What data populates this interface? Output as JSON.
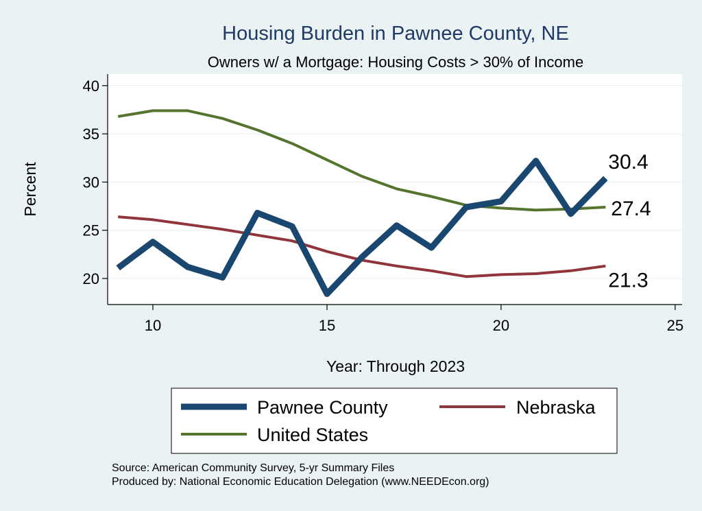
{
  "chart_data": {
    "type": "line",
    "title": "Housing Burden in Pawnee County, NE",
    "subtitle": "Owners w/ a Mortgage: Housing Costs > 30% of Income",
    "xlabel": "Year: Through 2023",
    "ylabel": "Percent",
    "xlim": [
      8.7,
      25.2
    ],
    "ylim": [
      17.3,
      41.2
    ],
    "xticks": [
      10,
      15,
      20,
      25
    ],
    "yticks": [
      20,
      25,
      30,
      35,
      40
    ],
    "x": [
      9,
      10,
      11,
      12,
      13,
      14,
      15,
      16,
      17,
      18,
      19,
      20,
      21,
      22,
      23
    ],
    "series": [
      {
        "name": "Pawnee County",
        "color": "#1a476f",
        "values": [
          21.1,
          23.8,
          21.2,
          20.1,
          26.8,
          25.4,
          18.4,
          22.2,
          25.5,
          23.2,
          27.4,
          28.0,
          32.2,
          26.7,
          30.4
        ],
        "end_label": "30.4"
      },
      {
        "name": "Nebraska",
        "color": "#90353b",
        "values": [
          26.4,
          26.1,
          25.6,
          25.1,
          24.5,
          23.9,
          22.8,
          21.9,
          21.3,
          20.8,
          20.2,
          20.4,
          20.5,
          20.8,
          21.3
        ],
        "end_label": "21.3"
      },
      {
        "name": "United States",
        "color": "#55752f",
        "values": [
          36.8,
          37.4,
          37.4,
          36.6,
          35.4,
          34.0,
          32.3,
          30.6,
          29.3,
          28.5,
          27.6,
          27.3,
          27.1,
          27.2,
          27.4
        ],
        "end_label": "27.4"
      }
    ],
    "legend": {
      "placement": "bottom",
      "entries": [
        "Pawnee County",
        "Nebraska",
        "United States"
      ]
    },
    "grid": true
  },
  "notes": {
    "source": "Source: American Community Survey, 5-yr Summary Files",
    "produced": "Produced by: National Economic Education Delegation (www.NEEDEcon.org)"
  }
}
